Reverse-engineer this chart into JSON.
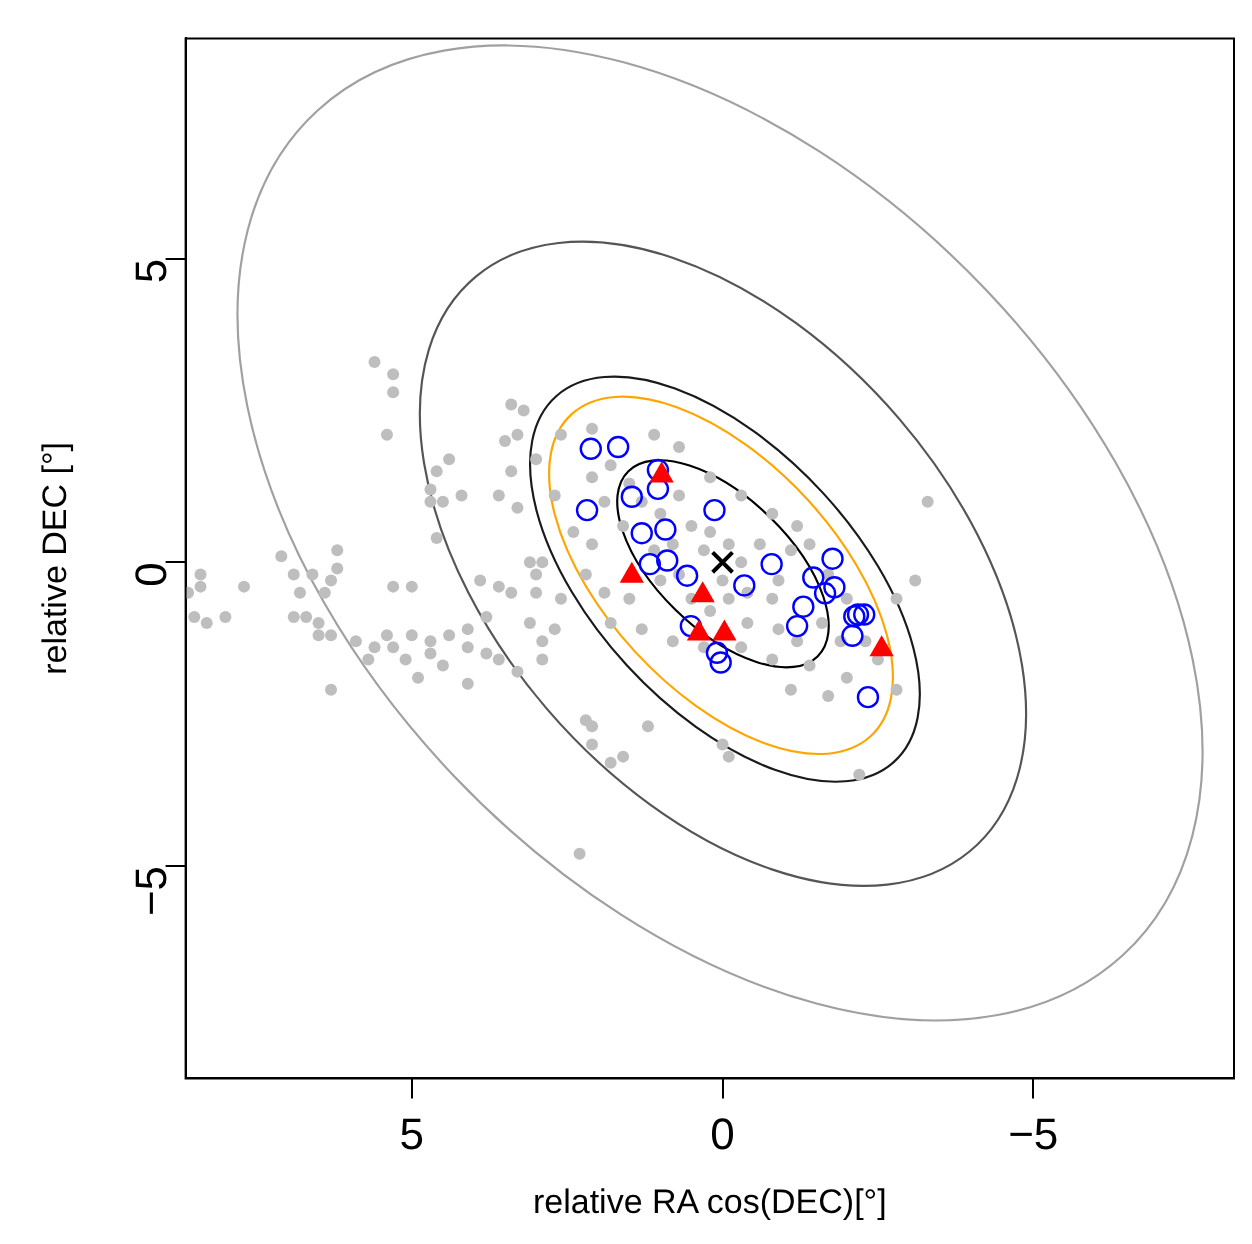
{
  "chart_data": {
    "type": "scatter",
    "xlabel": "relative RA cos(DEC)[°]",
    "ylabel": "relative DEC [°]",
    "xlim": [
      8.64,
      -8.23
    ],
    "ylim": [
      -8.5,
      8.63
    ],
    "xticks": [
      5,
      0,
      {
        "value": -5,
        "label": "−5"
      }
    ],
    "yticks": [
      {
        "value": -5,
        "label": "−5"
      },
      0,
      5
    ],
    "grid": false,
    "legend": false,
    "series": [
      {
        "marker": "circle",
        "color": "#bebebe",
        "x": [
          5.6,
          5.3,
          5.3,
          5.4,
          4.6,
          4.4,
          4.7,
          4.5,
          4.7,
          4.2,
          4.6,
          7.1,
          6.2,
          6.2,
          8.4,
          8.6,
          8.4,
          8.5,
          8.3,
          8.0,
          7.7,
          6.9,
          6.6,
          6.8,
          6.4,
          6.3,
          6.9,
          6.7,
          6.5,
          6.5,
          6.3,
          6.3,
          5.4,
          5.6,
          5.3,
          5.0,
          5.3,
          5.0,
          4.7,
          4.5,
          4.7,
          4.4,
          4.1,
          4.1,
          4.1,
          3.8,
          3.6,
          3.8,
          3.9,
          3.6,
          3.4,
          3.2,
          3.5,
          3.3,
          3.4,
          3.0,
          3.6,
          3.3,
          3.1,
          2.9,
          3.0,
          3.1,
          2.7,
          2.9,
          3.3,
          3.0,
          3.4,
          2.2,
          2.1,
          2.1,
          1.8,
          1.6,
          1.2,
          0.0,
          -0.1,
          -2.2,
          2.3,
          2.1,
          1.8,
          1.5,
          1.9,
          1.6,
          1.3,
          1.0,
          0.7,
          0.5,
          0.8,
          1.1,
          0.3,
          0.2,
          -0.1,
          -0.3,
          0.0,
          -0.4,
          -0.8,
          -0.9,
          -1.1,
          -0.6,
          0.7,
          1.0,
          0.5,
          0.2,
          -0.1,
          -0.4,
          -0.9,
          -1.2,
          -1.6,
          -1.9,
          -2.0,
          -1.7,
          -1.4,
          2.1,
          2.4,
          2.2,
          1.9,
          1.5,
          1.8,
          1.3,
          0.8,
          0.3,
          -0.3,
          -0.8,
          -1.4,
          -2.0,
          -2.5,
          -2.3,
          -2.8,
          -3.1,
          2.1,
          2.6,
          1.1,
          0.7,
          0.2,
          -0.3,
          -0.8,
          -1.2,
          2.7,
          2.6,
          2.9,
          -1.1,
          -1.7,
          -3.3,
          -2.8,
          5.9,
          5.7,
          5.1,
          4.9
        ],
        "values": [
          3.3,
          3.1,
          2.8,
          2.1,
          1.5,
          1.7,
          1.2,
          1.0,
          1.0,
          1.1,
          0.4,
          0.1,
          0.2,
          -0.1,
          -0.2,
          -0.5,
          -0.4,
          -0.9,
          -1.0,
          -0.9,
          -0.4,
          -0.2,
          -0.2,
          -0.5,
          -0.5,
          -0.3,
          -0.9,
          -0.9,
          -1.0,
          -1.2,
          -1.2,
          -2.1,
          -1.2,
          -1.4,
          -1.4,
          -1.2,
          -0.4,
          -0.4,
          -1.5,
          -1.7,
          -1.3,
          -1.2,
          -1.1,
          -1.4,
          -2.0,
          -1.5,
          -1.6,
          -0.9,
          -0.3,
          -0.4,
          2.6,
          2.5,
          2.0,
          2.1,
          1.5,
          1.7,
          1.1,
          0.9,
          0.0,
          0.0,
          -0.5,
          -1.0,
          -1.1,
          -1.6,
          -1.8,
          -0.2,
          -0.5,
          -2.6,
          -2.7,
          -3.0,
          -3.3,
          -3.2,
          -2.7,
          -3.0,
          -3.2,
          -3.5,
          -4.8,
          1.4,
          1.6,
          1.3,
          1.0,
          0.6,
          1.0,
          0.8,
          1.1,
          0.6,
          0.3,
          0.2,
          0.2,
          0.5,
          0.3,
          0.0,
          -0.3,
          -0.5,
          -0.6,
          -0.3,
          0.2,
          0.3,
          -0.2,
          -0.3,
          -0.6,
          -0.8,
          -0.6,
          -1.0,
          -1.1,
          -1.3,
          -1.0,
          -1.3,
          -0.6,
          -0.2,
          0.3,
          0.3,
          0.5,
          -0.2,
          -0.5,
          -0.6,
          -1.0,
          -1.1,
          -1.3,
          -1.4,
          -1.4,
          -1.6,
          -1.7,
          -1.9,
          -1.6,
          -1.3,
          -0.6,
          -0.3,
          2.2,
          2.1,
          2.1,
          1.9,
          1.4,
          1.1,
          0.8,
          0.6,
          1.1,
          -0.6,
          -1.3,
          -2.1,
          -2.2,
          1.0,
          -2.1,
          -1.3,
          -1.6,
          -1.6,
          -1.9
        ]
      },
      {
        "marker": "circle-open",
        "color": "#0000ff",
        "x": [
          2.12,
          1.68,
          1.04,
          1.04,
          1.46,
          2.18,
          0.13,
          1.3,
          0.92,
          1.17,
          0.89,
          0.57,
          -0.35,
          -0.79,
          -1.77,
          -1.46,
          -1.65,
          -1.8,
          -1.3,
          -1.2,
          -2.12,
          -2.28,
          -2.18,
          -2.09,
          0.51,
          0.09,
          0.03,
          -2.34
        ],
        "values": [
          1.87,
          1.9,
          1.52,
          1.21,
          1.08,
          0.86,
          0.86,
          0.48,
          0.54,
          -0.03,
          0.03,
          -0.22,
          -0.38,
          -0.03,
          0.06,
          -0.25,
          -0.51,
          -0.41,
          -0.73,
          -1.05,
          -0.89,
          -0.86,
          -0.86,
          -1.21,
          -1.05,
          -1.49,
          -1.65,
          -2.22
        ]
      },
      {
        "marker": "triangle",
        "color": "#ff0000",
        "x": [
          0.98,
          1.46,
          0.32,
          0.38,
          -0.03,
          -2.56
        ],
        "values": [
          1.43,
          -0.22,
          -0.54,
          -1.17,
          -1.17,
          -1.43
        ]
      },
      {
        "marker": "cross",
        "color": "#000000",
        "x": [
          0
        ],
        "values": [
          0
        ]
      }
    ]
  }
}
